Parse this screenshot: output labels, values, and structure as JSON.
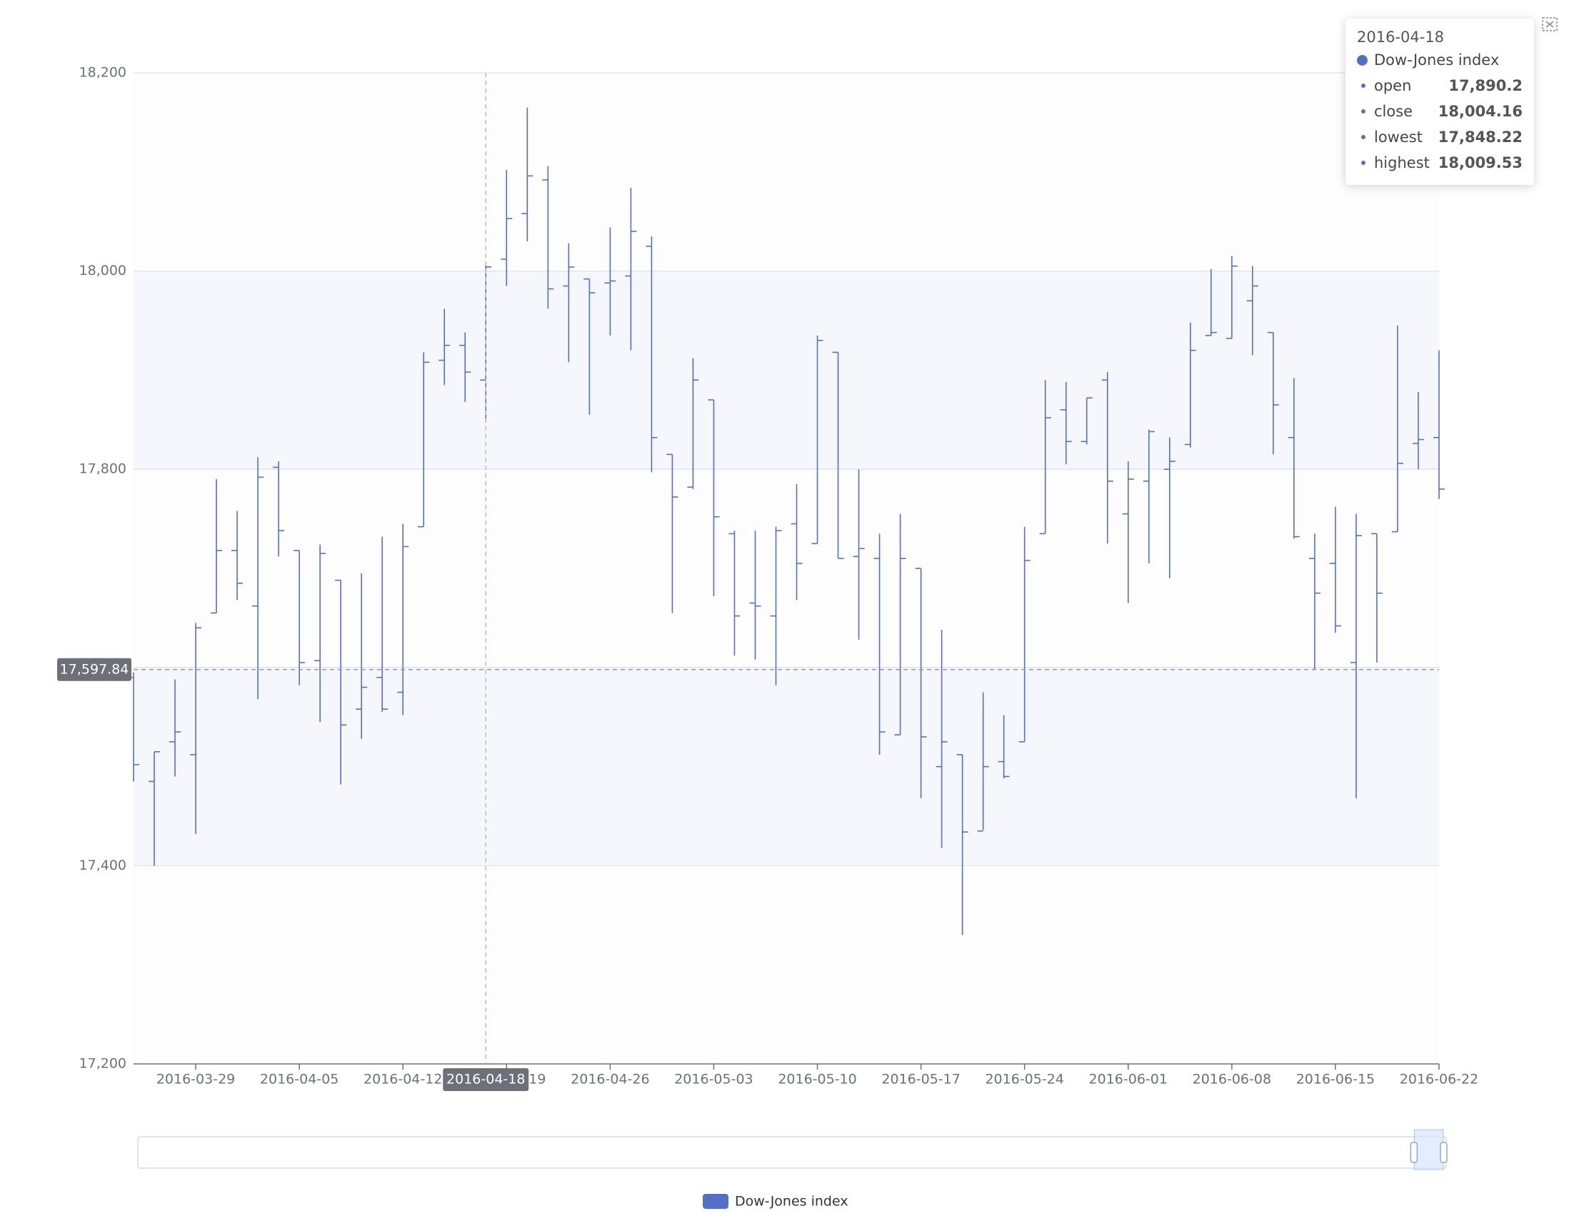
{
  "chart_data": {
    "type": "ohlc",
    "series_name": "Dow-Jones index",
    "color": "#5470c6",
    "y_axis": {
      "min": 17200,
      "max": 18200,
      "ticks": [
        "17,200",
        "17,400",
        "17,600",
        "17,800",
        "18,000",
        "18,200"
      ],
      "tick_values": [
        17200,
        17400,
        17600,
        17800,
        18000,
        18200
      ]
    },
    "x_axis_labels": [
      "2016-03-29",
      "2016-04-05",
      "2016-04-12",
      "2016-04-19",
      "2016-04-26",
      "2016-05-03",
      "2016-05-10",
      "2016-05-17",
      "2016-05-24",
      "2016-06-01",
      "2016-06-08",
      "2016-06-15",
      "2016-06-22"
    ],
    "x_label_indices": [
      3,
      8,
      13,
      18,
      23,
      28,
      33,
      38,
      43,
      48,
      53,
      58,
      63
    ],
    "bars": [
      [
        17590,
        17502,
        17485,
        17595
      ],
      [
        17485,
        17515,
        17400,
        17515
      ],
      [
        17525,
        17535,
        17490,
        17588
      ],
      [
        17512,
        17640,
        17432,
        17645
      ],
      [
        17655,
        17718,
        17655,
        17790
      ],
      [
        17718,
        17685,
        17668,
        17758
      ],
      [
        17662,
        17792,
        17568,
        17812
      ],
      [
        17802,
        17738,
        17712,
        17808
      ],
      [
        17718,
        17605,
        17582,
        17718
      ],
      [
        17607,
        17715,
        17545,
        17724
      ],
      [
        17688,
        17542,
        17482,
        17688
      ],
      [
        17558,
        17580,
        17528,
        17695
      ],
      [
        17590,
        17558,
        17555,
        17732
      ],
      [
        17575,
        17722,
        17552,
        17745
      ],
      [
        17742,
        17908,
        17742,
        17918
      ],
      [
        17910,
        17925,
        17885,
        17962
      ],
      [
        17925,
        17898,
        17868,
        17938
      ],
      [
        17890,
        18004.16,
        17848.22,
        18009.53
      ],
      [
        18012,
        18053,
        17985,
        18102
      ],
      [
        18058,
        18096,
        18030,
        18165
      ],
      [
        18092,
        17982,
        17962,
        18106
      ],
      [
        17985,
        18004,
        17908,
        18028
      ],
      [
        17992,
        17978,
        17855,
        17992
      ],
      [
        17988,
        17990,
        17935,
        18044
      ],
      [
        17995,
        18040,
        17920,
        18084
      ],
      [
        18025,
        17832,
        17797,
        18035
      ],
      [
        17815,
        17772,
        17655,
        17815
      ],
      [
        17782,
        17890,
        17780,
        17912
      ],
      [
        17870,
        17752,
        17672,
        17870
      ],
      [
        17735,
        17652,
        17612,
        17738
      ],
      [
        17665,
        17662,
        17608,
        17738
      ],
      [
        17652,
        17738,
        17582,
        17742
      ],
      [
        17745,
        17705,
        17668,
        17785
      ],
      [
        17725,
        17930,
        17725,
        17935
      ],
      [
        17918,
        17710,
        17710,
        17918
      ],
      [
        17712,
        17720,
        17628,
        17800
      ],
      [
        17710,
        17535,
        17512,
        17735
      ],
      [
        17532,
        17710,
        17532,
        17755
      ],
      [
        17700,
        17530,
        17468,
        17700
      ],
      [
        17500,
        17525,
        17418,
        17638
      ],
      [
        17512,
        17434,
        17330,
        17512
      ],
      [
        17435,
        17500,
        17436,
        17575
      ],
      [
        17505,
        17490,
        17488,
        17552
      ],
      [
        17525,
        17708,
        17525,
        17742
      ],
      [
        17735,
        17852,
        17735,
        17890
      ],
      [
        17860,
        17828,
        17805,
        17888
      ],
      [
        17828,
        17872,
        17825,
        17872
      ],
      [
        17890,
        17788,
        17725,
        17898
      ],
      [
        17755,
        17790,
        17665,
        17808
      ],
      [
        17788,
        17838,
        17705,
        17840
      ],
      [
        17800,
        17808,
        17690,
        17832
      ],
      [
        17825,
        17920,
        17822,
        17948
      ],
      [
        17935,
        17938,
        17935,
        18002
      ],
      [
        17932,
        18005,
        17932,
        18015
      ],
      [
        17970,
        17985,
        17915,
        18005
      ],
      [
        17938,
        17865,
        17815,
        17938
      ],
      [
        17832,
        17732,
        17730,
        17892
      ],
      [
        17710,
        17675,
        17598,
        17735
      ],
      [
        17705,
        17642,
        17635,
        17762
      ],
      [
        17605,
        17733,
        17468,
        17755
      ],
      [
        17735,
        17675,
        17605,
        17735
      ],
      [
        17737,
        17806,
        17737,
        17945
      ],
      [
        17826,
        17830,
        17800,
        17878
      ],
      [
        17832,
        17780,
        17770,
        17920
      ]
    ],
    "axis_pointer": {
      "x_label": "2016-04-18",
      "y_label": "17,597.84",
      "y_value": 17597.84,
      "x_index": 17
    },
    "tooltip": {
      "date": "2016-04-18",
      "series": "Dow-Jones index",
      "rows": [
        {
          "label": "open",
          "value": "17,890.2"
        },
        {
          "label": "close",
          "value": "18,004.16"
        },
        {
          "label": "lowest",
          "value": "17,848.22"
        },
        {
          "label": "highest",
          "value": "18,009.53"
        }
      ]
    },
    "legend": {
      "label": "Dow-Jones index",
      "placement": "bottom-center"
    },
    "data_zoom": {
      "start_percent": 98,
      "end_percent": 100
    },
    "grid": {
      "split_area": true
    }
  }
}
